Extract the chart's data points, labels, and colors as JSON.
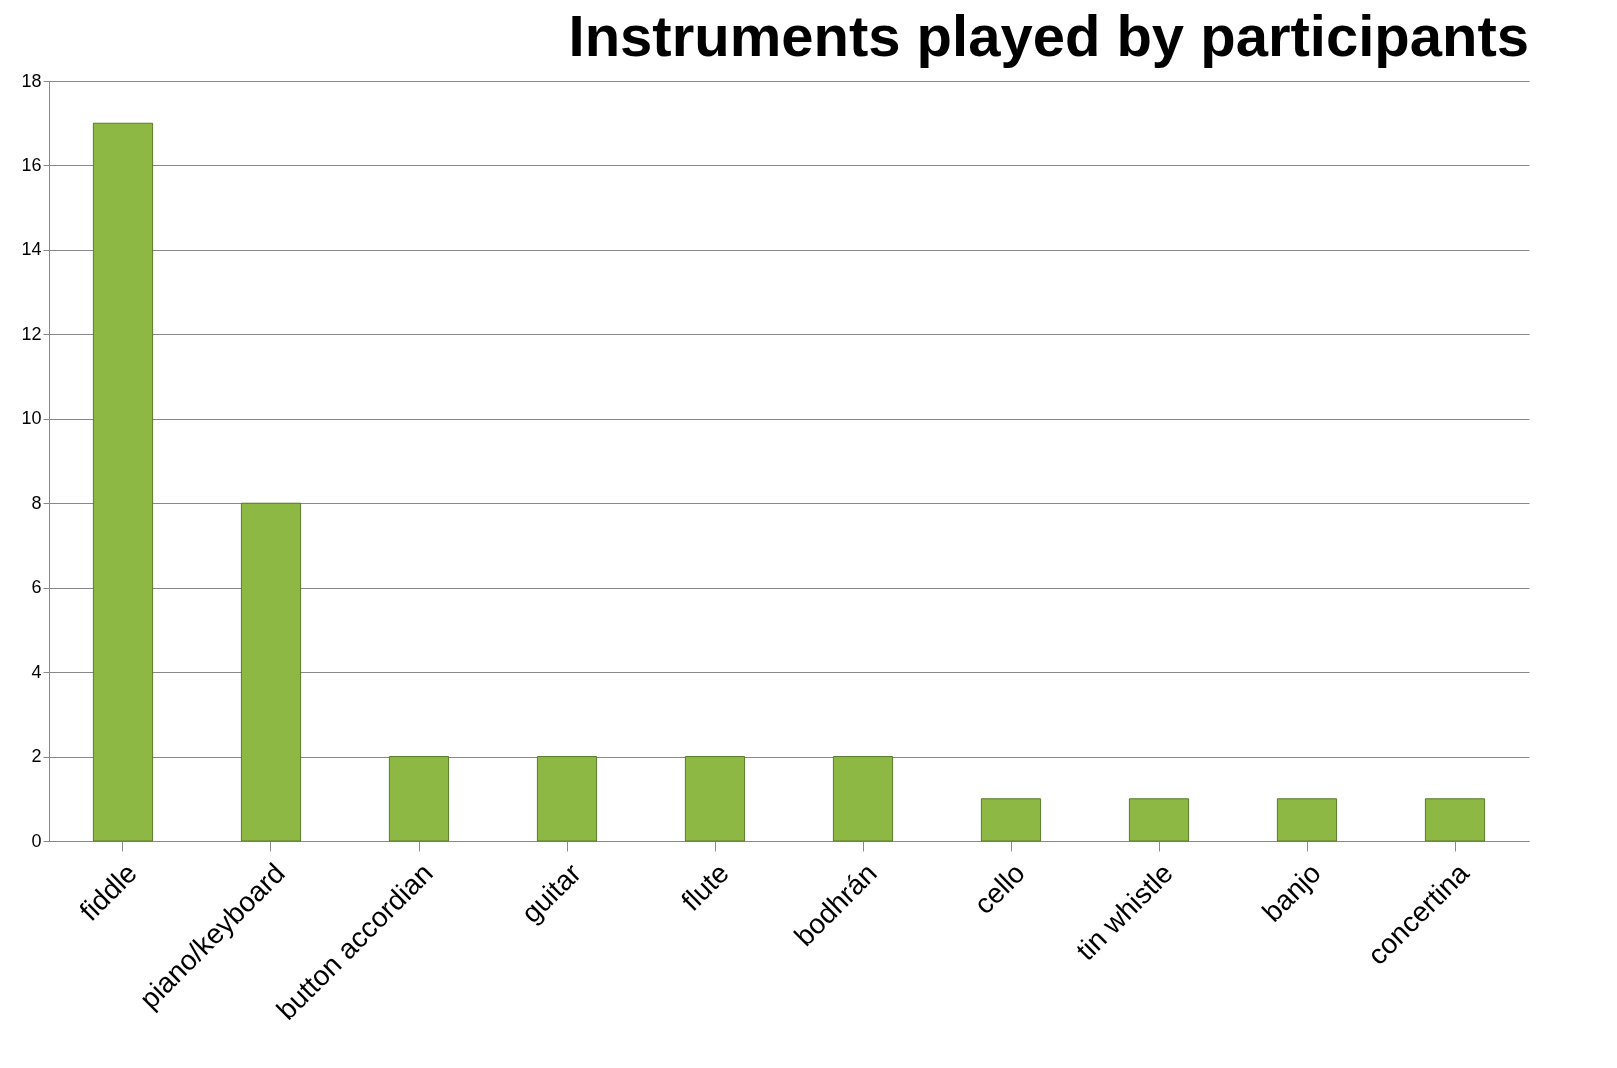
{
  "chart_data": {
    "type": "bar",
    "title": "Instruments played by participants",
    "categories": [
      "fiddle",
      "piano/keyboard",
      "button accordian",
      "guitar",
      "flute",
      "bodhrán",
      "cello",
      "tin whistle",
      "banjo",
      "concertina"
    ],
    "values": [
      17,
      8,
      2,
      2,
      2,
      2,
      1,
      1,
      1,
      1
    ],
    "color": "#8db844",
    "ylim": [
      0,
      18
    ],
    "yticks": [
      0,
      2,
      4,
      6,
      8,
      10,
      12,
      14,
      16,
      18
    ],
    "grid": "y"
  }
}
